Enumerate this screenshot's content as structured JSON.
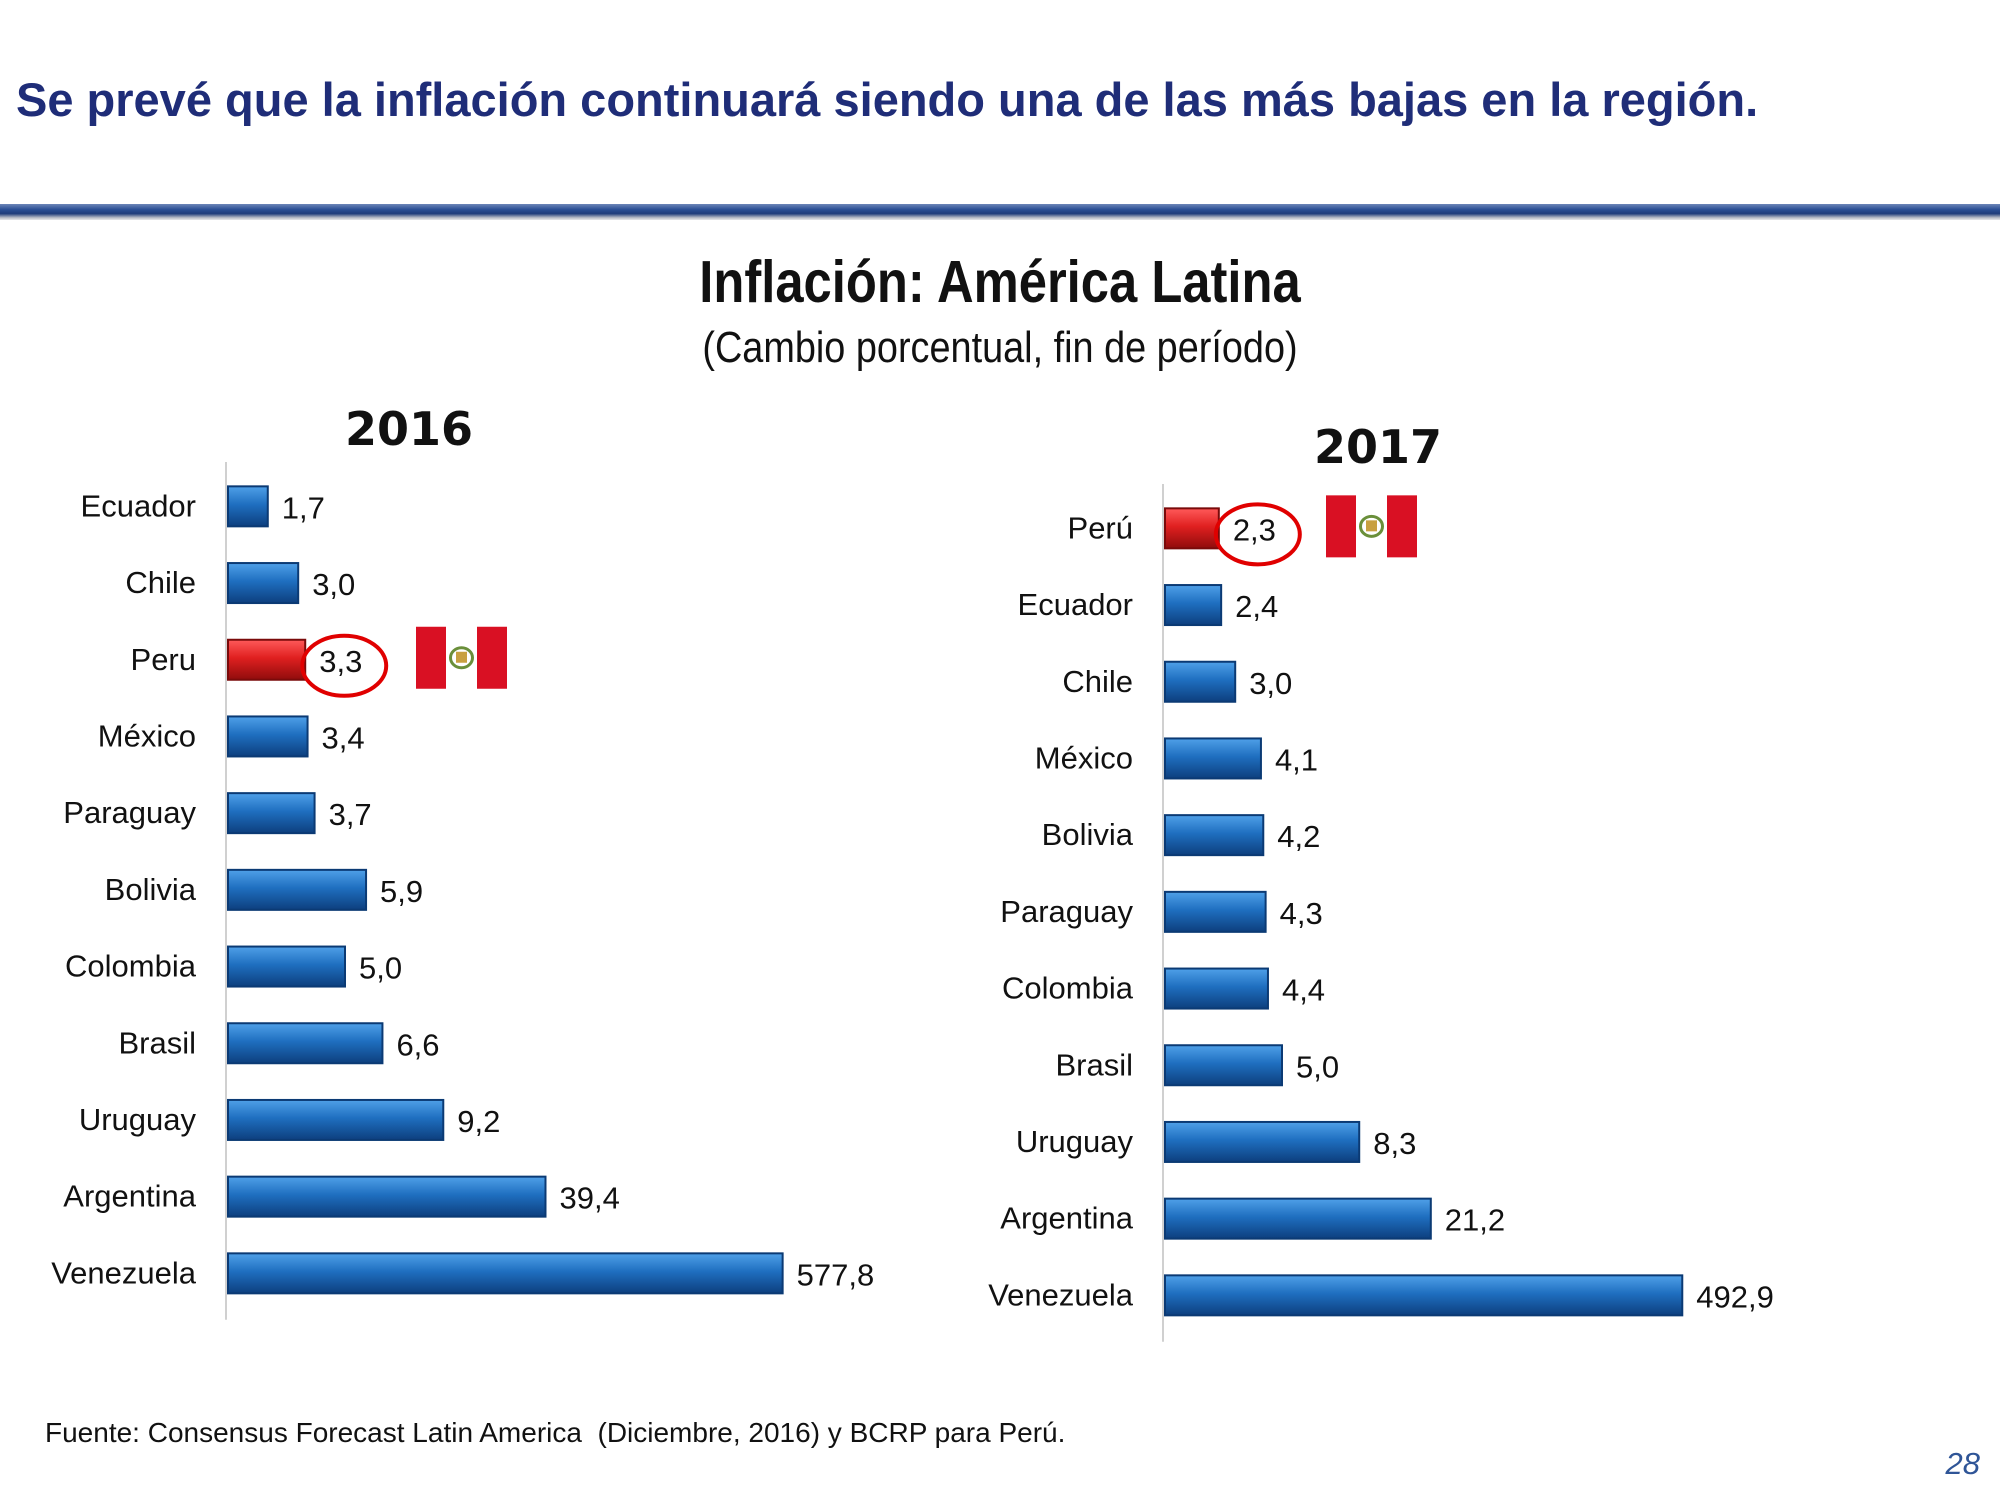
{
  "slide": {
    "headline": "Se prevé que la inflación continuará siendo una de las más bajas en la región.",
    "source": "Fuente: Consensus Forecast Latin America  (Diciembre, 2016) y BCRP para Perú.",
    "page_number": "28"
  },
  "colors": {
    "bar": "#1f6fc0",
    "highlight": "#e02020",
    "flag_red": "#d91023",
    "circle": "#e00000"
  },
  "chart_data": [
    {
      "type": "bar",
      "orientation": "horizontal",
      "title": "Inflación: América Latina",
      "subtitle": "(Cambio porcentual, fin de período)",
      "panel_title": "2016",
      "categories": [
        "Ecuador",
        "Chile",
        "Peru",
        "México",
        "Paraguay",
        "Bolivia",
        "Colombia",
        "Brasil",
        "Uruguay",
        "Argentina",
        "Venezuela"
      ],
      "values": [
        1.7,
        3.0,
        3.3,
        3.4,
        3.7,
        5.9,
        5.0,
        6.6,
        9.2,
        39.4,
        577.8
      ],
      "labels": [
        "1,7",
        "3,0",
        "3,3",
        "3,4",
        "3,7",
        "5,9",
        "5,0",
        "6,6",
        "9,2",
        "39,4",
        "577,8"
      ],
      "highlight": "Peru",
      "xlabel": "",
      "ylabel": "",
      "grid": false
    },
    {
      "type": "bar",
      "orientation": "horizontal",
      "title": "Inflación: América Latina",
      "subtitle": "(Cambio porcentual, fin de período)",
      "panel_title": "2017",
      "categories": [
        "Perú",
        "Ecuador",
        "Chile",
        "México",
        "Bolivia",
        "Paraguay",
        "Colombia",
        "Brasil",
        "Uruguay",
        "Argentina",
        "Venezuela"
      ],
      "values": [
        2.3,
        2.4,
        3.0,
        4.1,
        4.2,
        4.3,
        4.4,
        5.0,
        8.3,
        21.2,
        492.9
      ],
      "labels": [
        "2,3",
        "2,4",
        "3,0",
        "4,1",
        "4,2",
        "4,3",
        "4,4",
        "5,0",
        "8,3",
        "21,2",
        "492,9"
      ],
      "highlight": "Perú",
      "xlabel": "",
      "ylabel": "",
      "grid": false
    }
  ]
}
